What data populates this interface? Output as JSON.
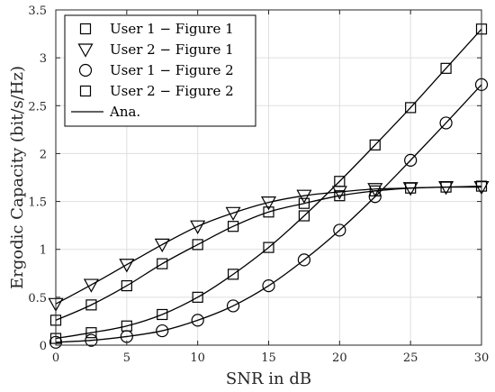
{
  "chart_data": {
    "type": "line",
    "xlabel": "SNR in dB",
    "ylabel": "Ergodic Capacity (bit/s/Hz)",
    "xlim": [
      0,
      30
    ],
    "ylim": [
      0,
      3.5
    ],
    "x_ticks": [
      "0",
      "5",
      "10",
      "15",
      "20",
      "25",
      "30"
    ],
    "y_ticks": [
      "0",
      "0.5",
      "1",
      "1.5",
      "2",
      "2.5",
      "3",
      "3.5"
    ],
    "grid": true,
    "legend_position": "top-left",
    "x": [
      0,
      2.5,
      5,
      7.5,
      10,
      12.5,
      15,
      17.5,
      20,
      22.5,
      25,
      27.5,
      30
    ],
    "series": [
      {
        "name": "User 1 − Figure 1",
        "marker": "square",
        "values": [
          0.07,
          0.13,
          0.2,
          0.32,
          0.5,
          0.74,
          1.02,
          1.35,
          1.71,
          2.09,
          2.48,
          2.89,
          3.3
        ]
      },
      {
        "name": "User 2 − Figure 1",
        "marker": "triangle-down",
        "values": [
          0.43,
          0.63,
          0.84,
          1.05,
          1.24,
          1.38,
          1.49,
          1.56,
          1.6,
          1.63,
          1.64,
          1.65,
          1.65
        ]
      },
      {
        "name": "User 1 − Figure 2",
        "marker": "circle",
        "values": [
          0.03,
          0.05,
          0.09,
          0.15,
          0.26,
          0.41,
          0.62,
          0.89,
          1.2,
          1.55,
          1.93,
          2.32,
          2.72
        ]
      },
      {
        "name": "User 2 − Figure 2",
        "marker": "square",
        "values": [
          0.26,
          0.42,
          0.62,
          0.85,
          1.05,
          1.24,
          1.39,
          1.48,
          1.56,
          1.61,
          1.64,
          1.65,
          1.66
        ]
      }
    ],
    "line_legend": "Ana.",
    "colors": {
      "line": "#000000",
      "grid": "#dfdfdf",
      "axis": "#262626"
    }
  }
}
